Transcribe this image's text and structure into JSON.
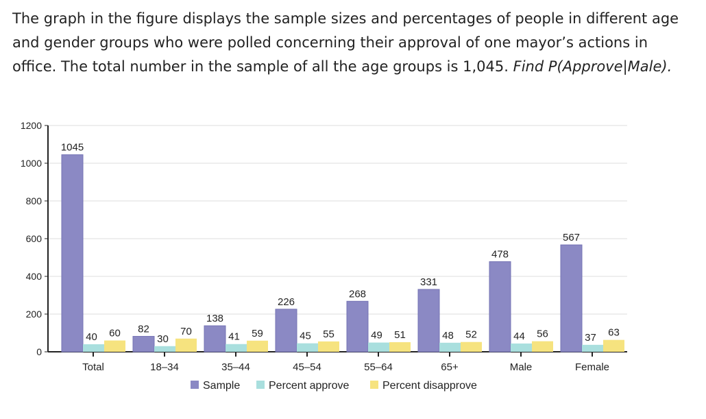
{
  "question": {
    "text": "The graph in the figure displays the sample sizes and percentages of people in different age and gender groups who were polled concerning their approval of one mayor’s actions in office. The total number in the sample of all the age groups is 1,045.",
    "prompt": "Find P(Approve|Male)."
  },
  "chart_data": {
    "type": "bar",
    "categories": [
      "Total",
      "18–34",
      "35–44",
      "45–54",
      "55–64",
      "65+",
      "Male",
      "Female"
    ],
    "series": [
      {
        "name": "Sample",
        "color": "#8b89c4",
        "values": [
          1045,
          82,
          138,
          226,
          268,
          331,
          478,
          567
        ]
      },
      {
        "name": "Percent approve",
        "color": "#a9dfde",
        "values": [
          40,
          30,
          41,
          45,
          49,
          48,
          44,
          37
        ]
      },
      {
        "name": "Percent disapprove",
        "color": "#f6e37f",
        "values": [
          60,
          70,
          59,
          55,
          51,
          52,
          56,
          63
        ]
      }
    ],
    "yticks": [
      0,
      200,
      400,
      600,
      800,
      1000,
      1200
    ],
    "ylim": [
      0,
      1200
    ],
    "grid": true,
    "legend": "bottom"
  }
}
